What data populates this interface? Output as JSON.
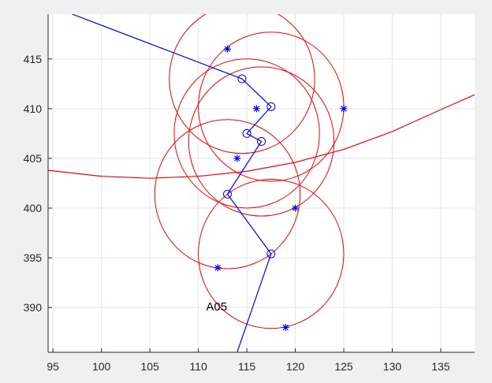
{
  "chart_data": {
    "type": "scatter",
    "title": "",
    "xlabel": "",
    "ylabel": "",
    "xlim": [
      94.5,
      138.5
    ],
    "ylim": [
      385.5,
      419.5
    ],
    "x_ticks": [
      "95",
      "100",
      "105",
      "110",
      "115",
      "120",
      "125",
      "130",
      "135"
    ],
    "y_ticks": [
      "390",
      "395",
      "400",
      "405",
      "410",
      "415"
    ],
    "grid": true,
    "colors": {
      "axes_background": "#ffffff",
      "figure_background": "#f0f0f0",
      "grid": "#e6e6e6",
      "axis": "#262626",
      "path": "#0000ff",
      "circles": "#ff0000",
      "markers": "#0000ff"
    },
    "path": {
      "x": [
        97,
        114.5,
        117.5,
        115,
        116.5,
        113,
        117.5,
        114
      ],
      "y": [
        419.5,
        413,
        410.2,
        407.5,
        406.7,
        401.4,
        395.4,
        385.5
      ]
    },
    "path_nodes": [
      {
        "x": 114.5,
        "y": 413
      },
      {
        "x": 117.5,
        "y": 410.2
      },
      {
        "x": 115,
        "y": 407.5
      },
      {
        "x": 116.5,
        "y": 406.7
      },
      {
        "x": 113,
        "y": 401.4
      },
      {
        "x": 117.5,
        "y": 395.4
      }
    ],
    "markers": [
      {
        "x": 113,
        "y": 416
      },
      {
        "x": 116,
        "y": 410
      },
      {
        "x": 125,
        "y": 410
      },
      {
        "x": 114,
        "y": 405
      },
      {
        "x": 120,
        "y": 400
      },
      {
        "x": 112,
        "y": 394
      },
      {
        "x": 119,
        "y": 388
      }
    ],
    "circles": [
      {
        "cx": 114.5,
        "cy": 413,
        "r": 7.5
      },
      {
        "cx": 117.5,
        "cy": 410.2,
        "r": 7.5
      },
      {
        "cx": 115,
        "cy": 407.5,
        "r": 7.5
      },
      {
        "cx": 116.5,
        "cy": 406.7,
        "r": 7.5
      },
      {
        "cx": 113,
        "cy": 401.4,
        "r": 7.5
      },
      {
        "cx": 117.5,
        "cy": 395.4,
        "r": 7.5
      }
    ],
    "curve": {
      "x": [
        94.5,
        100,
        105,
        110,
        115,
        120,
        125,
        130,
        135,
        138.5
      ],
      "y": [
        403.8,
        403.2,
        403.0,
        403.2,
        403.7,
        404.6,
        405.9,
        407.7,
        409.9,
        411.4
      ]
    },
    "annotations": [
      {
        "text": "A05",
        "x": 110.8,
        "y": 389.7
      }
    ]
  }
}
